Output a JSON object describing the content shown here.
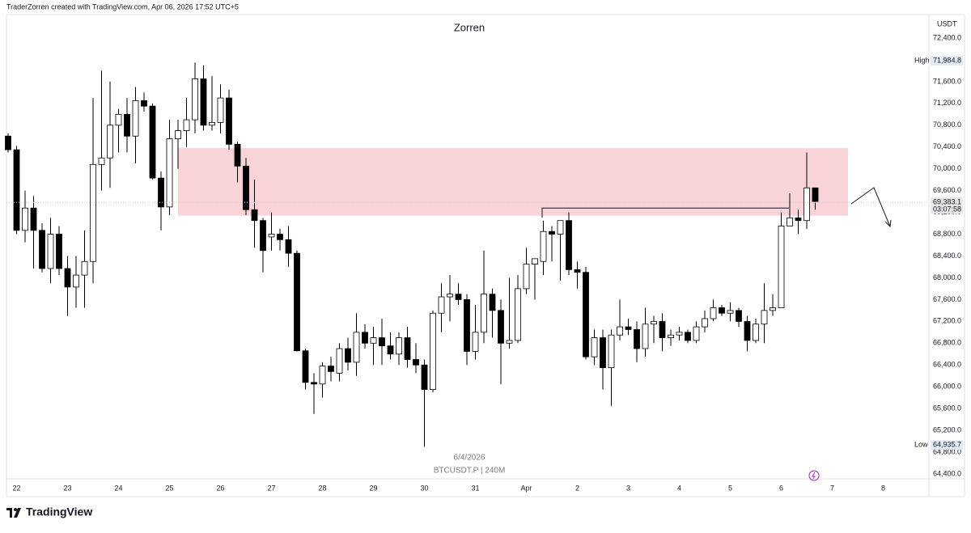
{
  "header": "TraderZorren created with TradingView.com, Apr 06, 2026 17:52 UTC+5",
  "logo": "TradingView",
  "chart_data": {
    "type": "candlestick",
    "title": "Zorren",
    "y_unit": "USDT",
    "watermark": [
      "6/4/2026",
      "BTCUSDT.P | 240M"
    ],
    "xtick_labels": [
      "22",
      "23",
      "24",
      "25",
      "26",
      "27",
      "28",
      "29",
      "30",
      "31",
      "Apr",
      "2",
      "3",
      "4",
      "5",
      "6",
      "7",
      "8"
    ],
    "ylim": [
      64400,
      72400
    ],
    "yticks": [
      {
        "value": 64400,
        "label": "64,400.0"
      },
      {
        "value": 64800,
        "label": "64,800.0"
      },
      {
        "value": 65200,
        "label": "65,200.0"
      },
      {
        "value": 65600,
        "label": "65,600.0"
      },
      {
        "value": 66000,
        "label": "66,000.0"
      },
      {
        "value": 66400,
        "label": "66,400.0"
      },
      {
        "value": 66800,
        "label": "66,800.0"
      },
      {
        "value": 67200,
        "label": "67,200.0"
      },
      {
        "value": 67600,
        "label": "67,600.0"
      },
      {
        "value": 68000,
        "label": "68,000.0"
      },
      {
        "value": 68400,
        "label": "68,400.0"
      },
      {
        "value": 68800,
        "label": "68,800.0"
      },
      {
        "value": 69200,
        "label": "69,200.0"
      },
      {
        "value": 69600,
        "label": "69,600.0"
      },
      {
        "value": 70000,
        "label": "70,000.0"
      },
      {
        "value": 70400,
        "label": "70,400.0"
      },
      {
        "value": 70800,
        "label": "70,800.0"
      },
      {
        "value": 71200,
        "label": "71,200.0"
      },
      {
        "value": 71600,
        "label": "71,600.0"
      },
      {
        "value": 72000,
        "label": "72,000.0"
      },
      {
        "value": 72400,
        "label": "72,400.0"
      }
    ],
    "high_marker": {
      "label": "High",
      "value": 71984.8,
      "value_label": "71,984.8"
    },
    "low_marker": {
      "label": "Low",
      "value": 64935.7,
      "value_label": "64,935.7"
    },
    "last_price": {
      "value": 69383.1,
      "label": "69,383.1",
      "countdown": "03:07:58"
    },
    "zone": {
      "low": 69140,
      "high": 70380,
      "color": "#f8d3d8"
    },
    "level": 69280,
    "up_color": "#ffffff",
    "down_color": "#000000",
    "candles": [
      [
        70600,
        70650,
        70300,
        70350
      ],
      [
        70350,
        70420,
        68800,
        68870
      ],
      [
        68870,
        69600,
        68650,
        69280
      ],
      [
        69280,
        69500,
        68170,
        68870
      ],
      [
        68870,
        69000,
        68100,
        68170
      ],
      [
        68170,
        69100,
        67900,
        68800
      ],
      [
        68800,
        68950,
        68050,
        68170
      ],
      [
        68170,
        68400,
        67300,
        67830
      ],
      [
        67830,
        68400,
        67450,
        68050
      ],
      [
        68050,
        68870,
        67450,
        68300
      ],
      [
        68300,
        71300,
        67900,
        70080
      ],
      [
        70080,
        71800,
        69600,
        70200
      ],
      [
        70200,
        71600,
        69650,
        70800
      ],
      [
        70800,
        71100,
        70300,
        71000
      ],
      [
        71000,
        71300,
        70300,
        70600
      ],
      [
        70600,
        71500,
        70100,
        71250
      ],
      [
        71250,
        71400,
        71050,
        71150
      ],
      [
        71150,
        71200,
        69800,
        69830
      ],
      [
        69830,
        69950,
        68870,
        69300
      ],
      [
        69300,
        70900,
        69150,
        70550
      ],
      [
        70550,
        70900,
        70000,
        70700
      ],
      [
        70700,
        71300,
        70400,
        70900
      ],
      [
        70900,
        71950,
        70650,
        71650
      ],
      [
        71650,
        71900,
        70700,
        70800
      ],
      [
        70800,
        71700,
        70700,
        70850
      ],
      [
        70850,
        71550,
        70650,
        71300
      ],
      [
        71300,
        71450,
        70350,
        70450
      ],
      [
        70450,
        70500,
        69750,
        70050
      ],
      [
        70050,
        70200,
        69150,
        69250
      ],
      [
        69250,
        69800,
        68550,
        69050
      ],
      [
        69050,
        69100,
        68100,
        68500
      ],
      [
        68750,
        69200,
        68500,
        68800
      ],
      [
        68800,
        68900,
        68500,
        68700
      ],
      [
        68700,
        68950,
        68200,
        68450
      ],
      [
        68450,
        68500,
        66650,
        66660
      ],
      [
        66660,
        66700,
        65950,
        66080
      ],
      [
        66080,
        66250,
        65500,
        66050
      ],
      [
        66050,
        66450,
        65800,
        66380
      ],
      [
        66380,
        66550,
        66100,
        66280
      ],
      [
        66250,
        66800,
        66100,
        66700
      ],
      [
        66700,
        66900,
        66300,
        66450
      ],
      [
        66450,
        67350,
        66200,
        67000
      ],
      [
        67000,
        67150,
        66700,
        66800
      ],
      [
        66800,
        67100,
        66400,
        66900
      ],
      [
        66900,
        67250,
        66400,
        66750
      ],
      [
        66750,
        67000,
        66500,
        66600
      ],
      [
        66600,
        67000,
        66400,
        66900
      ],
      [
        66900,
        67100,
        66350,
        66500
      ],
      [
        66500,
        66800,
        66250,
        66400
      ],
      [
        66400,
        66500,
        64900,
        65950
      ],
      [
        65950,
        67400,
        65900,
        67350
      ],
      [
        67350,
        67900,
        67000,
        67650
      ],
      [
        67650,
        68050,
        67200,
        67700
      ],
      [
        67700,
        67900,
        67500,
        67600
      ],
      [
        67600,
        67700,
        66400,
        66650
      ],
      [
        66650,
        67500,
        66500,
        67000
      ],
      [
        67000,
        68500,
        66800,
        67700
      ],
      [
        67700,
        67800,
        66900,
        67400
      ],
      [
        67400,
        67600,
        66050,
        66800
      ],
      [
        66800,
        68000,
        66700,
        66850
      ],
      [
        66850,
        68050,
        66800,
        67800
      ],
      [
        67800,
        68550,
        67700,
        68250
      ],
      [
        68250,
        68350,
        67600,
        68350
      ],
      [
        68300,
        69050,
        68050,
        68850
      ],
      [
        68850,
        68950,
        68300,
        68800
      ],
      [
        68800,
        69000,
        67950,
        69050
      ],
      [
        69050,
        69200,
        68050,
        68150
      ],
      [
        68150,
        68300,
        67800,
        68100
      ],
      [
        68100,
        68200,
        66500,
        66550
      ],
      [
        66550,
        67050,
        66400,
        66900
      ],
      [
        66900,
        67050,
        65950,
        66350
      ],
      [
        66350,
        67050,
        65650,
        66950
      ],
      [
        66950,
        67600,
        66850,
        67100
      ],
      [
        67100,
        67250,
        66950,
        67050
      ],
      [
        67050,
        67200,
        66450,
        66700
      ],
      [
        66700,
        67450,
        66550,
        67150
      ],
      [
        67150,
        67300,
        66800,
        67200
      ],
      [
        67200,
        67350,
        66650,
        66900
      ],
      [
        66900,
        67050,
        66750,
        66950
      ],
      [
        66950,
        67100,
        66850,
        67000
      ],
      [
        67000,
        67050,
        66800,
        66850
      ],
      [
        66850,
        67200,
        66800,
        67100
      ],
      [
        67100,
        67400,
        67000,
        67250
      ],
      [
        67250,
        67600,
        67200,
        67450
      ],
      [
        67450,
        67500,
        67300,
        67350
      ],
      [
        67350,
        67550,
        67200,
        67400
      ],
      [
        67400,
        67450,
        67100,
        67200
      ],
      [
        67200,
        67300,
        66650,
        66850
      ],
      [
        66850,
        67250,
        66800,
        67150
      ],
      [
        67150,
        67900,
        66800,
        67400
      ],
      [
        67400,
        67700,
        67300,
        67450
      ],
      [
        67450,
        69200,
        67450,
        68950
      ],
      [
        68950,
        69550,
        68950,
        69100
      ],
      [
        69100,
        69250,
        68800,
        69050
      ],
      [
        69050,
        70300,
        68900,
        69650
      ],
      [
        69650,
        69650,
        69250,
        69400
      ]
    ]
  }
}
